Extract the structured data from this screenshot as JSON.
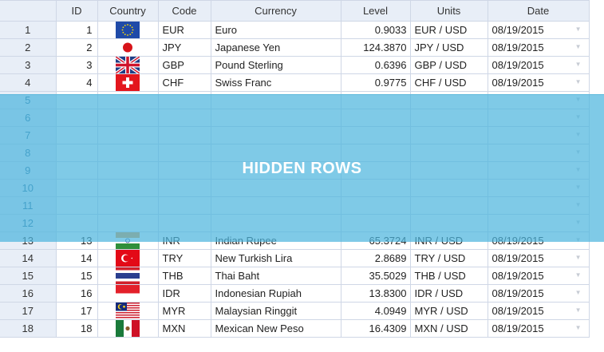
{
  "columns": [
    "",
    "ID",
    "Country",
    "Code",
    "Currency",
    "Level",
    "Units",
    "Date"
  ],
  "overlay_label": "HIDDEN ROWS",
  "rows": [
    {
      "n": "1",
      "id": "1",
      "flag": "eu",
      "code": "EUR",
      "currency": "Euro",
      "level": "0.9033",
      "units": "EUR / USD",
      "date": "08/19/2015"
    },
    {
      "n": "2",
      "id": "2",
      "flag": "jp",
      "code": "JPY",
      "currency": "Japanese Yen",
      "level": "124.3870",
      "units": "JPY / USD",
      "date": "08/19/2015"
    },
    {
      "n": "3",
      "id": "3",
      "flag": "gb",
      "code": "GBP",
      "currency": "Pound Sterling",
      "level": "0.6396",
      "units": "GBP / USD",
      "date": "08/19/2015"
    },
    {
      "n": "4",
      "id": "4",
      "flag": "ch",
      "code": "CHF",
      "currency": "Swiss Franc",
      "level": "0.9775",
      "units": "CHF / USD",
      "date": "08/19/2015"
    },
    {
      "n": "5",
      "hidden": true
    },
    {
      "n": "6",
      "hidden": true
    },
    {
      "n": "7",
      "hidden": true
    },
    {
      "n": "8",
      "hidden": true
    },
    {
      "n": "9",
      "hidden": true
    },
    {
      "n": "10",
      "hidden": true
    },
    {
      "n": "11",
      "hidden": true
    },
    {
      "n": "12",
      "hidden": true
    },
    {
      "n": "13",
      "id": "13",
      "flag": "in",
      "code": "INR",
      "currency": "Indian Rupee",
      "level": "65.3724",
      "units": "INR / USD",
      "date": "08/19/2015"
    },
    {
      "n": "14",
      "id": "14",
      "flag": "tr",
      "code": "TRY",
      "currency": "New Turkish Lira",
      "level": "2.8689",
      "units": "TRY / USD",
      "date": "08/19/2015"
    },
    {
      "n": "15",
      "id": "15",
      "flag": "th",
      "code": "THB",
      "currency": "Thai Baht",
      "level": "35.5029",
      "units": "THB / USD",
      "date": "08/19/2015"
    },
    {
      "n": "16",
      "id": "16",
      "flag": "id",
      "code": "IDR",
      "currency": "Indonesian Rupiah",
      "level": "13.8300",
      "units": "IDR / USD",
      "date": "08/19/2015"
    },
    {
      "n": "17",
      "id": "17",
      "flag": "my",
      "code": "MYR",
      "currency": "Malaysian Ringgit",
      "level": "4.0949",
      "units": "MYR / USD",
      "date": "08/19/2015"
    },
    {
      "n": "18",
      "id": "18",
      "flag": "mx",
      "code": "MXN",
      "currency": "Mexican New Peso",
      "level": "16.4309",
      "units": "MXN / USD",
      "date": "08/19/2015"
    }
  ]
}
